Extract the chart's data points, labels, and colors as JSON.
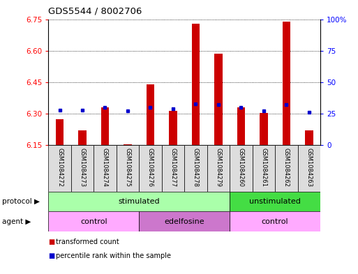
{
  "title": "GDS5544 / 8002706",
  "samples": [
    "GSM1084272",
    "GSM1084273",
    "GSM1084274",
    "GSM1084275",
    "GSM1084276",
    "GSM1084277",
    "GSM1084278",
    "GSM1084279",
    "GSM1084260",
    "GSM1084261",
    "GSM1084262",
    "GSM1084263"
  ],
  "transformed_count": [
    6.275,
    6.22,
    6.33,
    6.155,
    6.44,
    6.315,
    6.73,
    6.585,
    6.33,
    6.305,
    6.74,
    6.22
  ],
  "percentile_rank": [
    28,
    28,
    30,
    27,
    30,
    29,
    33,
    32,
    30,
    27,
    32,
    26
  ],
  "baseline": 6.15,
  "ylim_left": [
    6.15,
    6.75
  ],
  "ylim_right": [
    0,
    100
  ],
  "yticks_left": [
    6.15,
    6.3,
    6.45,
    6.6,
    6.75
  ],
  "yticks_right": [
    0,
    25,
    50,
    75,
    100
  ],
  "bar_color": "#cc0000",
  "dot_color": "#0000cc",
  "label_bg_color": "#dddddd",
  "protocol_groups": [
    {
      "label": "stimulated",
      "start": 0,
      "end": 8,
      "color": "#aaffaa"
    },
    {
      "label": "unstimulated",
      "start": 8,
      "end": 12,
      "color": "#44dd44"
    }
  ],
  "agent_groups": [
    {
      "label": "control",
      "start": 0,
      "end": 4,
      "color": "#ffaaff"
    },
    {
      "label": "edelfosine",
      "start": 4,
      "end": 8,
      "color": "#cc77cc"
    },
    {
      "label": "control",
      "start": 8,
      "end": 12,
      "color": "#ffaaff"
    }
  ],
  "legend_items": [
    {
      "label": "transformed count",
      "color": "#cc0000"
    },
    {
      "label": "percentile rank within the sample",
      "color": "#0000cc"
    }
  ],
  "protocol_label": "protocol",
  "agent_label": "agent",
  "fig_width": 5.13,
  "fig_height": 3.93,
  "dpi": 100
}
